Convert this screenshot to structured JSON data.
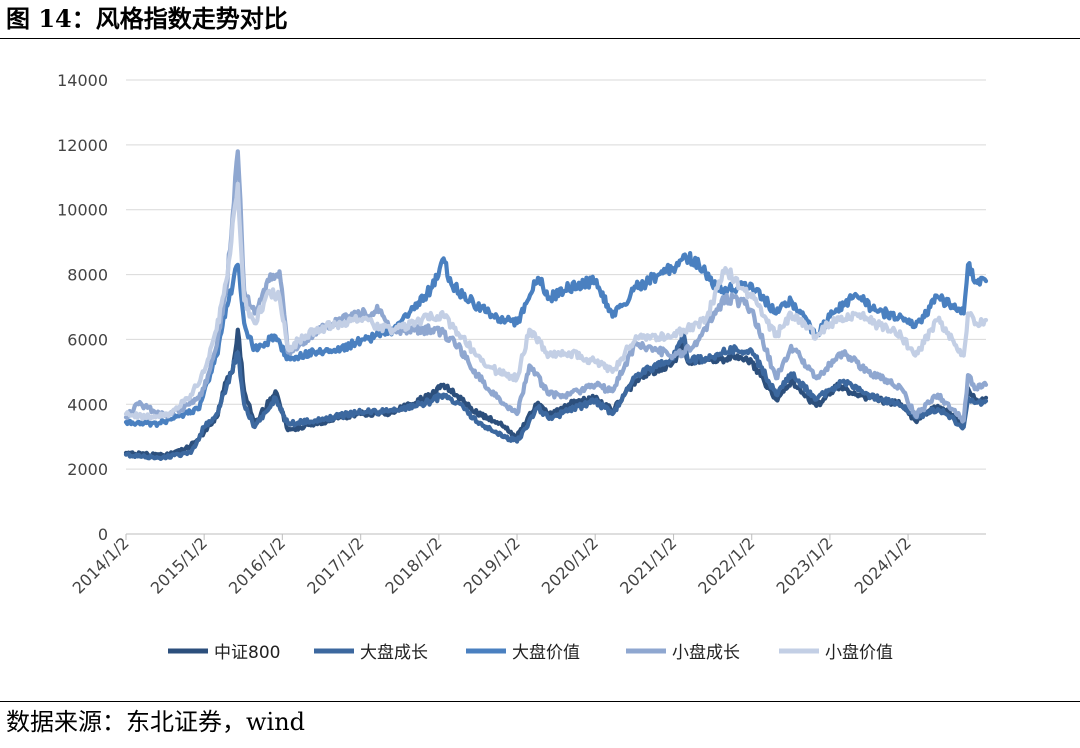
{
  "figure": {
    "title": "图 14：风格指数走势对比",
    "source": "数据来源：东北证券，wind"
  },
  "chart_data": {
    "type": "line",
    "title": "",
    "xlabel": "",
    "ylabel": "",
    "ylim": [
      0,
      14000
    ],
    "yticks": [
      0,
      2000,
      4000,
      6000,
      8000,
      10000,
      12000,
      14000
    ],
    "x_tick_labels": [
      "2014/1/2",
      "2015/1/2",
      "2016/1/2",
      "2017/1/2",
      "2018/1/2",
      "2019/1/2",
      "2020/1/2",
      "2021/1/2",
      "2022/1/2",
      "2023/1/2",
      "2024/1/2"
    ],
    "xlim": [
      "2014/1/2",
      "2024/12/31"
    ],
    "grid": "horizontal",
    "legend_position": "bottom",
    "series": [
      {
        "name": "中证800",
        "color": "#2c4f7c",
        "points": [
          [
            "2014/1/2",
            2500
          ],
          [
            "2014/7/1",
            2420
          ],
          [
            "2014/10/1",
            2600
          ],
          [
            "2014/12/1",
            2900
          ],
          [
            "2015/1/2",
            3150
          ],
          [
            "2015/3/1",
            3600
          ],
          [
            "2015/4/15",
            4700
          ],
          [
            "2015/5/15",
            5000
          ],
          [
            "2015/6/8",
            6300
          ],
          [
            "2015/7/8",
            4400
          ],
          [
            "2015/8/26",
            3400
          ],
          [
            "2015/12/1",
            4400
          ],
          [
            "2016/1/28",
            3200
          ],
          [
            "2016/6/1",
            3400
          ],
          [
            "2016/10/1",
            3600
          ],
          [
            "2017/1/2",
            3700
          ],
          [
            "2017/6/1",
            3750
          ],
          [
            "2017/12/1",
            4300
          ],
          [
            "2018/1/24",
            4600
          ],
          [
            "2018/4/1",
            4250
          ],
          [
            "2018/7/1",
            3700
          ],
          [
            "2018/10/1",
            3450
          ],
          [
            "2019/1/2",
            3000
          ],
          [
            "2019/4/10",
            4050
          ],
          [
            "2019/6/1",
            3650
          ],
          [
            "2019/9/1",
            4000
          ],
          [
            "2020/1/2",
            4200
          ],
          [
            "2020/3/23",
            3800
          ],
          [
            "2020/7/10",
            4750
          ],
          [
            "2020/12/31",
            5300
          ],
          [
            "2021/2/18",
            5850
          ],
          [
            "2021/3/10",
            5300
          ],
          [
            "2021/7/1",
            5400
          ],
          [
            "2021/12/1",
            5400
          ],
          [
            "2022/1/2",
            5300
          ],
          [
            "2022/4/26",
            4150
          ],
          [
            "2022/7/5",
            4700
          ],
          [
            "2022/10/31",
            3950
          ],
          [
            "2023/1/2",
            4300
          ],
          [
            "2023/1/31",
            4550
          ],
          [
            "2023/7/1",
            4200
          ],
          [
            "2023/12/1",
            4000
          ],
          [
            "2024/2/5",
            3500
          ],
          [
            "2024/5/20",
            3950
          ],
          [
            "2024/9/18",
            3400
          ],
          [
            "2024/10/8",
            4500
          ],
          [
            "2024/11/15",
            4150
          ],
          [
            "2024/12/31",
            4200
          ]
        ]
      },
      {
        "name": "大盘成长",
        "color": "#3c689f",
        "points": [
          [
            "2014/1/2",
            2450
          ],
          [
            "2014/6/1",
            2350
          ],
          [
            "2014/11/1",
            2500
          ],
          [
            "2015/1/2",
            3300
          ],
          [
            "2015/3/1",
            3700
          ],
          [
            "2015/4/15",
            4500
          ],
          [
            "2015/6/8",
            5600
          ],
          [
            "2015/7/8",
            4000
          ],
          [
            "2015/8/26",
            3300
          ],
          [
            "2015/12/1",
            4200
          ],
          [
            "2016/1/28",
            3400
          ],
          [
            "2016/6/1",
            3500
          ],
          [
            "2016/10/1",
            3650
          ],
          [
            "2017/1/2",
            3750
          ],
          [
            "2017/6/1",
            3800
          ],
          [
            "2017/12/1",
            4100
          ],
          [
            "2018/1/24",
            4300
          ],
          [
            "2018/4/1",
            4050
          ],
          [
            "2018/7/1",
            3450
          ],
          [
            "2018/10/1",
            3100
          ],
          [
            "2019/1/2",
            2850
          ],
          [
            "2019/4/10",
            3900
          ],
          [
            "2019/6/1",
            3550
          ],
          [
            "2019/9/1",
            3800
          ],
          [
            "2020/1/2",
            4100
          ],
          [
            "2020/3/23",
            3700
          ],
          [
            "2020/7/10",
            4900
          ],
          [
            "2020/12/31",
            5400
          ],
          [
            "2021/2/18",
            6200
          ],
          [
            "2021/3/10",
            5350
          ],
          [
            "2021/7/1",
            5450
          ],
          [
            "2021/10/1",
            5700
          ],
          [
            "2022/1/2",
            5650
          ],
          [
            "2022/4/26",
            4300
          ],
          [
            "2022/7/5",
            4950
          ],
          [
            "2022/10/31",
            4150
          ],
          [
            "2023/1/2",
            4450
          ],
          [
            "2023/3/1",
            4700
          ],
          [
            "2023/7/1",
            4300
          ],
          [
            "2023/12/1",
            3950
          ],
          [
            "2024/2/5",
            3600
          ],
          [
            "2024/5/20",
            3850
          ],
          [
            "2024/9/18",
            3300
          ],
          [
            "2024/10/8",
            4200
          ],
          [
            "2024/11/15",
            4050
          ],
          [
            "2024/12/31",
            4100
          ]
        ]
      },
      {
        "name": "大盘价值",
        "color": "#4a80c0",
        "points": [
          [
            "2014/1/2",
            3450
          ],
          [
            "2014/6/1",
            3400
          ],
          [
            "2014/10/1",
            3700
          ],
          [
            "2014/12/10",
            3850
          ],
          [
            "2015/1/2",
            4400
          ],
          [
            "2015/3/1",
            5500
          ],
          [
            "2015/4/15",
            7000
          ],
          [
            "2015/6/8",
            8300
          ],
          [
            "2015/7/8",
            6500
          ],
          [
            "2015/8/26",
            5700
          ],
          [
            "2015/12/1",
            6100
          ],
          [
            "2016/1/28",
            5400
          ],
          [
            "2016/6/1",
            5600
          ],
          [
            "2016/10/1",
            5700
          ],
          [
            "2017/1/2",
            5950
          ],
          [
            "2017/6/1",
            6300
          ],
          [
            "2017/12/1",
            7600
          ],
          [
            "2018/1/24",
            8500
          ],
          [
            "2018/3/1",
            7700
          ],
          [
            "2018/7/1",
            7000
          ],
          [
            "2018/10/1",
            6700
          ],
          [
            "2019/1/2",
            6500
          ],
          [
            "2019/4/10",
            7900
          ],
          [
            "2019/6/1",
            7300
          ],
          [
            "2019/9/1",
            7600
          ],
          [
            "2020/1/2",
            7800
          ],
          [
            "2020/3/23",
            6700
          ],
          [
            "2020/7/10",
            7600
          ],
          [
            "2020/12/31",
            8200
          ],
          [
            "2021/2/18",
            8600
          ],
          [
            "2021/5/1",
            8300
          ],
          [
            "2021/8/1",
            7500
          ],
          [
            "2021/11/1",
            7600
          ],
          [
            "2022/1/2",
            7700
          ],
          [
            "2022/4/26",
            6800
          ],
          [
            "2022/7/5",
            7200
          ],
          [
            "2022/10/31",
            6100
          ],
          [
            "2023/1/2",
            6700
          ],
          [
            "2023/5/1",
            7400
          ],
          [
            "2023/8/1",
            6900
          ],
          [
            "2023/12/1",
            6700
          ],
          [
            "2024/2/5",
            6400
          ],
          [
            "2024/5/20",
            7300
          ],
          [
            "2024/9/18",
            6800
          ],
          [
            "2024/10/8",
            8300
          ],
          [
            "2024/11/15",
            7800
          ],
          [
            "2024/12/31",
            7800
          ]
        ]
      },
      {
        "name": "小盘成长",
        "color": "#8fa7d0",
        "points": [
          [
            "2014/1/2",
            3600
          ],
          [
            "2014/3/1",
            4000
          ],
          [
            "2014/7/1",
            3650
          ],
          [
            "2014/10/1",
            3900
          ],
          [
            "2014/12/1",
            4200
          ],
          [
            "2015/1/2",
            4500
          ],
          [
            "2015/3/1",
            5800
          ],
          [
            "2015/4/15",
            7500
          ],
          [
            "2015/6/8",
            11800
          ],
          [
            "2015/7/8",
            7500
          ],
          [
            "2015/8/26",
            6800
          ],
          [
            "2015/11/1",
            7800
          ],
          [
            "2015/12/20",
            8100
          ],
          [
            "2016/1/28",
            5600
          ],
          [
            "2016/6/1",
            6200
          ],
          [
            "2016/10/1",
            6600
          ],
          [
            "2017/1/2",
            6800
          ],
          [
            "2017/4/1",
            6900
          ],
          [
            "2017/6/1",
            6300
          ],
          [
            "2017/12/1",
            6300
          ],
          [
            "2018/1/24",
            6200
          ],
          [
            "2018/4/1",
            5800
          ],
          [
            "2018/7/1",
            4900
          ],
          [
            "2018/10/1",
            4200
          ],
          [
            "2019/1/2",
            3700
          ],
          [
            "2019/3/1",
            5200
          ],
          [
            "2019/6/1",
            4300
          ],
          [
            "2019/9/1",
            4300
          ],
          [
            "2020/1/2",
            4600
          ],
          [
            "2020/3/23",
            4400
          ],
          [
            "2020/7/10",
            5900
          ],
          [
            "2020/12/31",
            5500
          ],
          [
            "2021/2/18",
            5600
          ],
          [
            "2021/5/1",
            6000
          ],
          [
            "2021/9/1",
            7300
          ],
          [
            "2021/12/1",
            7100
          ],
          [
            "2022/1/2",
            6900
          ],
          [
            "2022/4/26",
            4800
          ],
          [
            "2022/7/5",
            5800
          ],
          [
            "2022/10/31",
            4800
          ],
          [
            "2023/1/2",
            5200
          ],
          [
            "2023/3/1",
            5600
          ],
          [
            "2023/7/1",
            5000
          ],
          [
            "2023/12/1",
            4500
          ],
          [
            "2024/2/5",
            3650
          ],
          [
            "2024/5/20",
            4300
          ],
          [
            "2024/9/18",
            3500
          ],
          [
            "2024/10/8",
            4900
          ],
          [
            "2024/11/15",
            4500
          ],
          [
            "2024/12/31",
            4600
          ]
        ]
      },
      {
        "name": "小盘价值",
        "color": "#c3cfe5",
        "points": [
          [
            "2014/1/2",
            3700
          ],
          [
            "2014/4/1",
            3600
          ],
          [
            "2014/8/1",
            3700
          ],
          [
            "2014/11/1",
            4300
          ],
          [
            "2015/1/2",
            5000
          ],
          [
            "2015/3/1",
            6300
          ],
          [
            "2015/4/15",
            7800
          ],
          [
            "2015/6/8",
            10800
          ],
          [
            "2015/7/8",
            7200
          ],
          [
            "2015/8/26",
            6500
          ],
          [
            "2015/11/1",
            7500
          ],
          [
            "2015/12/20",
            7300
          ],
          [
            "2016/1/28",
            5700
          ],
          [
            "2016/6/1",
            6300
          ],
          [
            "2016/10/1",
            6500
          ],
          [
            "2017/1/2",
            6600
          ],
          [
            "2017/6/1",
            6300
          ],
          [
            "2017/12/1",
            6700
          ],
          [
            "2018/1/24",
            6700
          ],
          [
            "2018/4/1",
            6200
          ],
          [
            "2018/7/1",
            5500
          ],
          [
            "2018/10/1",
            5000
          ],
          [
            "2019/1/2",
            4800
          ],
          [
            "2019/3/1",
            6300
          ],
          [
            "2019/6/1",
            5500
          ],
          [
            "2019/9/1",
            5600
          ],
          [
            "2020/1/2",
            5300
          ],
          [
            "2020/3/23",
            5000
          ],
          [
            "2020/7/10",
            6100
          ],
          [
            "2020/12/31",
            6100
          ],
          [
            "2021/2/18",
            6300
          ],
          [
            "2021/6/1",
            6600
          ],
          [
            "2021/9/1",
            8200
          ],
          [
            "2021/12/1",
            7500
          ],
          [
            "2022/1/2",
            7300
          ],
          [
            "2022/4/26",
            6100
          ],
          [
            "2022/7/5",
            6800
          ],
          [
            "2022/10/31",
            6100
          ],
          [
            "2023/1/2",
            6500
          ],
          [
            "2023/5/1",
            6800
          ],
          [
            "2023/8/1",
            6500
          ],
          [
            "2023/12/1",
            6100
          ],
          [
            "2024/2/5",
            5500
          ],
          [
            "2024/5/20",
            6600
          ],
          [
            "2024/9/18",
            5500
          ],
          [
            "2024/10/8",
            6800
          ],
          [
            "2024/11/15",
            6500
          ],
          [
            "2024/12/31",
            6600
          ]
        ]
      }
    ]
  }
}
